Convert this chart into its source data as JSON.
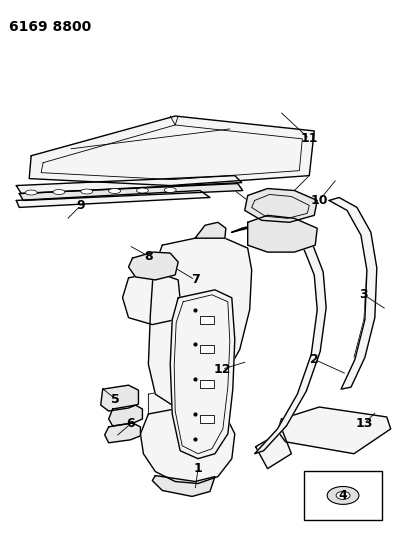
{
  "title": "6169 8800",
  "background_color": "#ffffff",
  "line_color": "#000000",
  "title_fontsize": 10,
  "label_fontsize": 9,
  "fig_width": 4.08,
  "fig_height": 5.33,
  "dpi": 100,
  "lw_thin": 0.6,
  "lw_med": 1.0,
  "lw_thick": 1.4,
  "fill_light": "#f5f5f5",
  "fill_mid": "#e8e8e8",
  "fill_dark": "#d8d8d8"
}
